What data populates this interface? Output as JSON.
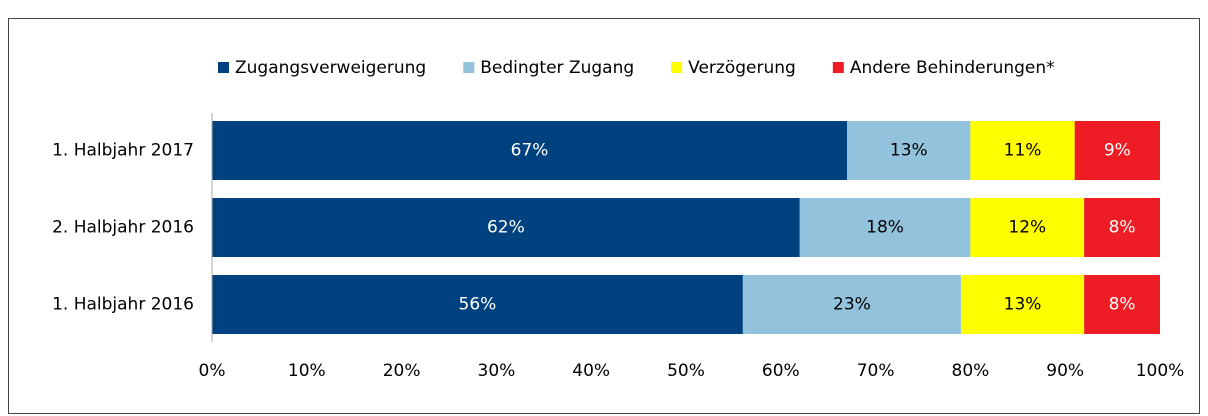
{
  "chart_data": {
    "type": "bar",
    "orientation": "horizontal",
    "stacked": true,
    "categories": [
      "1. Halbjahr 2017",
      "2. Halbjahr 2016",
      "1. Halbjahr 2016"
    ],
    "series": [
      {
        "name": "Zugangsverweigerung",
        "color": "#00427f",
        "values": [
          67,
          62,
          56
        ],
        "value_labels": [
          "67%",
          "62%",
          "56%"
        ]
      },
      {
        "name": "Bedingter Zugang",
        "color": "#93c3dc",
        "values": [
          13,
          18,
          23
        ],
        "value_labels": [
          "13%",
          "18%",
          "23%"
        ]
      },
      {
        "name": "Verzögerung",
        "color": "#ffff00",
        "values": [
          11,
          12,
          13
        ],
        "value_labels": [
          "11%",
          "12%",
          "13%"
        ]
      },
      {
        "name": "Andere Behinderungen*",
        "color": "#ee1c25",
        "values": [
          9,
          8,
          8
        ],
        "value_labels": [
          "9%",
          "8%",
          "8%"
        ]
      }
    ],
    "xlim": [
      0,
      100
    ],
    "xticks": [
      {
        "value": 0,
        "label": "0%"
      },
      {
        "value": 10,
        "label": "10%"
      },
      {
        "value": 20,
        "label": "20%"
      },
      {
        "value": 30,
        "label": "30%"
      },
      {
        "value": 40,
        "label": "40%"
      },
      {
        "value": 50,
        "label": "50%"
      },
      {
        "value": 60,
        "label": "60%"
      },
      {
        "value": 70,
        "label": "70%"
      },
      {
        "value": 80,
        "label": "80%"
      },
      {
        "value": 90,
        "label": "90%"
      },
      {
        "value": 100,
        "label": "100%"
      }
    ],
    "legend": "top",
    "grid": false
  }
}
